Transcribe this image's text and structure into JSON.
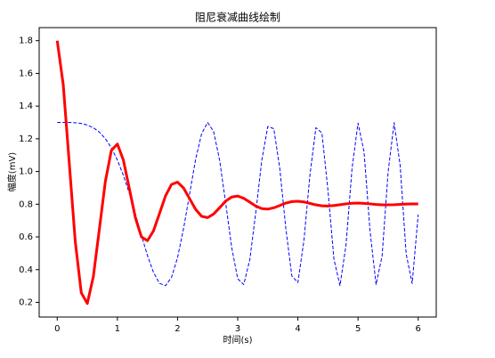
{
  "chart_data": {
    "type": "line",
    "title": "阻尼衰减曲线绘制",
    "x_label": "时间(s)",
    "y_label": "幅度(mV)",
    "x": [
      0,
      0.1,
      0.2,
      0.3,
      0.4,
      0.5,
      0.6,
      0.7,
      0.8,
      0.9,
      1,
      1.1,
      1.2,
      1.3,
      1.4,
      1.5,
      1.6,
      1.7,
      1.8,
      1.9,
      2,
      2.1,
      2.2,
      2.3,
      2.4,
      2.5,
      2.6,
      2.7,
      2.8,
      2.9,
      3,
      3.1,
      3.2,
      3.3,
      3.4,
      3.5,
      3.6,
      3.7,
      3.8,
      3.9,
      4,
      4.1,
      4.2,
      4.3,
      4.4,
      4.5,
      4.6,
      4.7,
      4.8,
      4.9,
      5,
      5.1,
      5.2,
      5.3,
      5.4,
      5.5,
      5.6,
      5.7,
      5.8,
      5.9,
      6
    ],
    "series": [
      {
        "color": "#0000ff",
        "linewidth": 1,
        "linestyle": "dashed",
        "values": [
          1.3,
          1.3,
          1.3,
          1.298,
          1.294,
          1.284,
          1.268,
          1.241,
          1.201,
          1.145,
          1.07,
          0.976,
          0.865,
          0.741,
          0.61,
          0.486,
          0.383,
          0.316,
          0.302,
          0.353,
          0.473,
          0.651,
          0.862,
          1.074,
          1.231,
          1.3,
          1.244,
          1.068,
          0.807,
          0.536,
          0.344,
          0.309,
          0.458,
          0.748,
          1.068,
          1.275,
          1.262,
          1.017,
          0.651,
          0.361,
          0.321,
          0.576,
          0.977,
          1.268,
          1.236,
          0.885,
          0.463,
          0.302,
          0.55,
          1.017,
          1.296,
          1.12,
          0.635,
          0.309,
          0.483,
          0.997,
          1.299,
          1.038,
          0.496,
          0.315,
          0.737
        ]
      },
      {
        "color": "#ff0000",
        "linewidth": 3,
        "linestyle": "solid",
        "values": [
          1.8,
          1.532,
          1.053,
          0.571,
          0.258,
          0.193,
          0.356,
          0.646,
          0.939,
          1.129,
          1.168,
          1.069,
          0.893,
          0.716,
          0.6,
          0.577,
          0.637,
          0.743,
          0.851,
          0.921,
          0.935,
          0.899,
          0.834,
          0.769,
          0.726,
          0.718,
          0.74,
          0.779,
          0.819,
          0.844,
          0.85,
          0.836,
          0.813,
          0.789,
          0.773,
          0.77,
          0.778,
          0.792,
          0.807,
          0.816,
          0.818,
          0.814,
          0.805,
          0.796,
          0.79,
          0.789,
          0.792,
          0.797,
          0.802,
          0.806,
          0.807,
          0.805,
          0.802,
          0.798,
          0.796,
          0.796,
          0.797,
          0.799,
          0.801,
          0.802,
          0.802
        ]
      }
    ],
    "xlim": [
      -0.3,
      6.3
    ],
    "xticks": [
      0,
      1,
      2,
      3,
      4,
      5,
      6
    ],
    "ylim": [
      0.11,
      1.88
    ],
    "yticks": [
      0.2,
      0.4,
      0.6,
      0.8,
      {
        "value": 1,
        "label": "1.0"
      },
      1.2,
      1.4,
      1.6,
      1.8
    ]
  }
}
